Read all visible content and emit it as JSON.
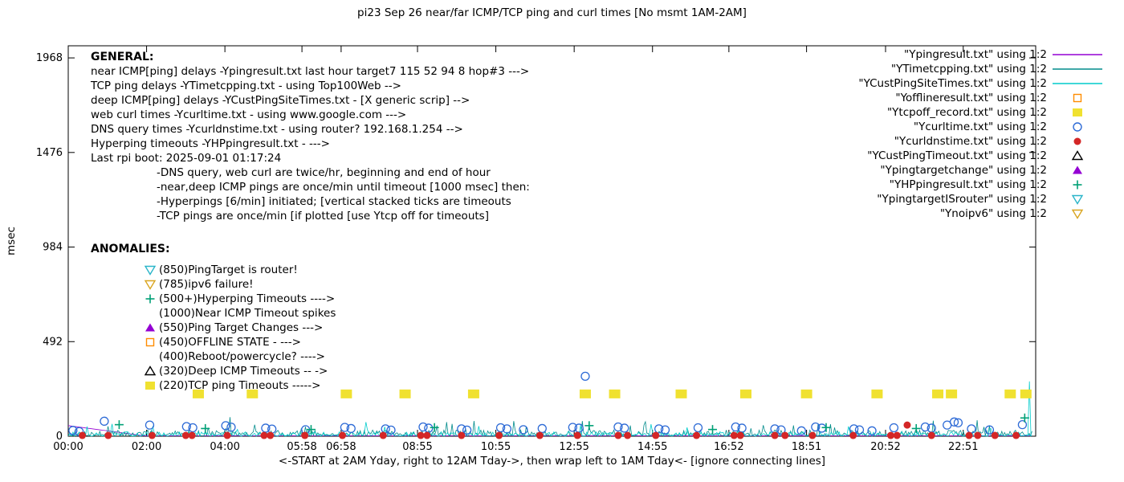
{
  "title": "pi23 Sep 26  near/far ICMP/TCP ping and curl times  [No msmt 1AM-2AM]",
  "axes": {
    "ylabel": "msec",
    "xlabel": "<-START at 2AM Yday, right to 12AM Tday->, then wrap left to 1AM Tday<- [ignore connecting lines]",
    "yticks": [
      {
        "label": "0",
        "v": 0
      },
      {
        "label": "492",
        "v": 492
      },
      {
        "label": "984",
        "v": 984
      },
      {
        "label": "1476",
        "v": 1476
      },
      {
        "label": "1968",
        "v": 1968
      }
    ],
    "xticks": [
      {
        "label": "00:00",
        "t": 0
      },
      {
        "label": "02:00",
        "t": 2
      },
      {
        "label": "04:00",
        "t": 4
      },
      {
        "label": "05:58",
        "t": 5.967
      },
      {
        "label": "06:58",
        "t": 6.967
      },
      {
        "label": "08:55",
        "t": 8.917
      },
      {
        "label": "10:55",
        "t": 10.917
      },
      {
        "label": "12:55",
        "t": 12.917
      },
      {
        "label": "14:55",
        "t": 14.917
      },
      {
        "label": "16:52",
        "t": 16.867
      },
      {
        "label": "18:51",
        "t": 18.85
      },
      {
        "label": "20:52",
        "t": 20.867
      },
      {
        "label": "22:51",
        "t": 22.85
      }
    ]
  },
  "notes": {
    "general_heading": "GENERAL:",
    "general_lines": [
      {
        "text": "near ICMP[ping] delays -Ypingresult.txt last hour target7 115 52 94 8 hop#3 --->",
        "indent": false
      },
      {
        "text": "TCP ping delays -YTimetcpping.txt - using Top100Web -->",
        "indent": false
      },
      {
        "text": "deep ICMP[ping] delays -YCustPingSiteTimes.txt - [X generic scrip] -->",
        "indent": false
      },
      {
        "text": "web curl times -Ycurltime.txt - using www.google.com --->",
        "indent": false
      },
      {
        "text": "DNS query times -Ycurldnstime.txt - using router? 192.168.1.254 -->",
        "indent": false
      },
      {
        "text": "Hyperping timeouts -YHPpingresult.txt - --->",
        "indent": false
      },
      {
        "text": "Last rpi boot: 2025-09-01 01:17:24",
        "indent": false
      },
      {
        "text": "-DNS query, web curl are twice/hr, beginning and end of hour",
        "indent": true
      },
      {
        "text": "-near,deep ICMP pings are once/min until timeout [1000 msec] then:",
        "indent": true
      },
      {
        "text": "-Hyperpings [6/min] initiated; [vertical stacked ticks are timeouts",
        "indent": true
      },
      {
        "text": "-TCP pings are once/min [if plotted [use Ytcp off for timeouts]",
        "indent": true
      }
    ],
    "anomalies_heading": "ANOMALIES:",
    "anomaly_items": [
      {
        "marker": "tri-down-open",
        "color": "#2ab5c9",
        "text": "(850)PingTarget is router!"
      },
      {
        "marker": "tri-down-open",
        "color": "#d9a520",
        "text": "(785)ipv6 failure!"
      },
      {
        "marker": "plus",
        "color": "#00a076",
        "text": "(500+)Hyperping Timeouts ---->"
      },
      {
        "marker": null,
        "color": null,
        "text": "(1000)Near ICMP Timeout spikes"
      },
      {
        "marker": "triangle-filled",
        "color": "#9400d3",
        "text": "(550)Ping Target Changes --->"
      },
      {
        "marker": "square-open",
        "color": "#ff8c00",
        "text": "(450)OFFLINE STATE - --->"
      },
      {
        "marker": null,
        "color": null,
        "text": "(400)Reboot/powercycle? ---->"
      },
      {
        "marker": "triangle-open",
        "color": "#000000",
        "text": "(320)Deep ICMP Timeouts -- ->"
      },
      {
        "marker": "square-filled",
        "color": "#f0e130",
        "text": "(220)TCP ping Timeouts ----->"
      }
    ]
  },
  "legend": [
    {
      "label": "\"Ypingresult.txt\" using 1:2",
      "marker": "line",
      "color": "#9400d3"
    },
    {
      "label": "\"YTimetcpping.txt\" using 1:2",
      "marker": "line",
      "color": "#008b8b"
    },
    {
      "label": "\"YCustPingSiteTimes.txt\" using 1:2",
      "marker": "line",
      "color": "#00cccc"
    },
    {
      "label": "\"Yofflineresult.txt\" using 1:2",
      "marker": "square-open",
      "color": "#ff8c00"
    },
    {
      "label": "\"Ytcpoff_record.txt\" using 1:2",
      "marker": "square-filled",
      "color": "#f0e130"
    },
    {
      "label": "\"Ycurltime.txt\" using 1:2",
      "marker": "circle-open",
      "color": "#2e6bd6"
    },
    {
      "label": "\"Ycurldnstime.txt\" using 1:2",
      "marker": "circle-filled",
      "color": "#d42626"
    },
    {
      "label": "\"YCustPingTimeout.txt\" using 1:2",
      "marker": "triangle-open",
      "color": "#000000"
    },
    {
      "label": "\"Ypingtargetchange\" using 1:2",
      "marker": "triangle-filled",
      "color": "#9400d3"
    },
    {
      "label": "\"YHPpingresult.txt\" using 1:2",
      "marker": "plus",
      "color": "#00a076"
    },
    {
      "label": "\"YpingtargetISrouter\" using 1:2",
      "marker": "tri-down-open",
      "color": "#2ab5c9"
    },
    {
      "label": "\"Ynoipv6\" using 1:2",
      "marker": "tri-down-open",
      "color": "#d9a520"
    }
  ],
  "chart_data": {
    "type": "line",
    "title": "pi23 Sep 26  near/far ICMP/TCP ping and curl times  [No msmt 1AM-2AM]",
    "xlabel": "<-START at 2AM Yday, right to 12AM Tday->, then wrap left to 1AM Tday<- [ignore connecting lines]",
    "ylabel": "msec",
    "xlim": [
      0,
      24.7
    ],
    "ylim": [
      0,
      2031
    ],
    "grid": false,
    "legend_position": "top-right",
    "series": [
      {
        "name": "Ypingresult.txt",
        "type": "line",
        "color": "#9400d3",
        "points": [
          [
            0,
            55
          ],
          [
            1.95,
            2
          ],
          [
            24.6,
            2
          ]
        ]
      },
      {
        "name": "YTimetcpping.txt",
        "type": "noise-line",
        "color": "#008b8b",
        "noise": {
          "seed": 7,
          "base": 2,
          "amp": 30,
          "spike_chance": 0.05,
          "spike_amp": 70,
          "step": 0.035,
          "t0": 0,
          "t1": 24.62
        }
      },
      {
        "name": "YCustPingSiteTimes.txt",
        "type": "noise-line",
        "color": "#00cccc",
        "noise": {
          "seed": 13,
          "base": 1,
          "amp": 22,
          "spike_chance": 0.04,
          "spike_amp": 55,
          "step": 0.04,
          "t0": 0,
          "t1": 24.62
        },
        "extra_segments": [
          [
            [
              24.5,
              0
            ],
            [
              24.54,
              285
            ],
            [
              24.58,
              0
            ]
          ]
        ]
      },
      {
        "name": "Ytcpoff_record.txt (TCP ping timeouts, 220 msec)",
        "type": "square-filled",
        "color": "#f0e130",
        "w": 14,
        "h": 11,
        "points": [
          [
            3.32,
            220
          ],
          [
            4.7,
            220
          ],
          [
            7.1,
            220
          ],
          [
            8.6,
            220
          ],
          [
            10.35,
            220
          ],
          [
            13.2,
            220
          ],
          [
            13.95,
            220
          ],
          [
            15.65,
            220
          ],
          [
            17.3,
            220
          ],
          [
            18.85,
            220
          ],
          [
            20.65,
            220
          ],
          [
            22.2,
            220
          ],
          [
            22.55,
            220
          ],
          [
            24.05,
            220
          ],
          [
            24.45,
            220
          ]
        ]
      },
      {
        "name": "Ycurltime.txt (web curl times)",
        "type": "circle-open",
        "color": "#2e6bd6",
        "points": [
          [
            0.12,
            30
          ],
          [
            0.28,
            24
          ],
          [
            0.92,
            78
          ],
          [
            2.08,
            58
          ],
          [
            3.02,
            50
          ],
          [
            3.18,
            44
          ],
          [
            4.02,
            55
          ],
          [
            4.16,
            47
          ],
          [
            5.04,
            42
          ],
          [
            5.2,
            37
          ],
          [
            6.06,
            34
          ],
          [
            7.06,
            46
          ],
          [
            7.22,
            40
          ],
          [
            8.1,
            38
          ],
          [
            8.24,
            32
          ],
          [
            9.06,
            48
          ],
          [
            9.2,
            42
          ],
          [
            10.04,
            38
          ],
          [
            10.18,
            32
          ],
          [
            11.04,
            44
          ],
          [
            11.2,
            38
          ],
          [
            11.62,
            34
          ],
          [
            12.1,
            40
          ],
          [
            12.88,
            46
          ],
          [
            13.04,
            42
          ],
          [
            13.2,
            312
          ],
          [
            14.04,
            48
          ],
          [
            14.2,
            42
          ],
          [
            15.08,
            38
          ],
          [
            15.24,
            33
          ],
          [
            16.08,
            44
          ],
          [
            17.04,
            48
          ],
          [
            17.2,
            42
          ],
          [
            18.04,
            38
          ],
          [
            18.2,
            33
          ],
          [
            18.72,
            28
          ],
          [
            19.08,
            48
          ],
          [
            19.24,
            42
          ],
          [
            20.06,
            38
          ],
          [
            20.2,
            33
          ],
          [
            20.52,
            28
          ],
          [
            21.08,
            44
          ],
          [
            21.88,
            48
          ],
          [
            22.04,
            42
          ],
          [
            22.44,
            58
          ],
          [
            22.62,
            74
          ],
          [
            22.72,
            70
          ],
          [
            23.06,
            38
          ],
          [
            23.52,
            33
          ],
          [
            24.36,
            60
          ]
        ]
      },
      {
        "name": "Ycurldnstime.txt (DNS query times)",
        "type": "circle-filled",
        "color": "#d42626",
        "points": [
          [
            0.36,
            4
          ],
          [
            1.02,
            4
          ],
          [
            2.14,
            4
          ],
          [
            3.0,
            4
          ],
          [
            3.16,
            4
          ],
          [
            4.06,
            4
          ],
          [
            5.0,
            4
          ],
          [
            5.16,
            4
          ],
          [
            6.04,
            4
          ],
          [
            7.0,
            4
          ],
          [
            8.04,
            4
          ],
          [
            9.0,
            4
          ],
          [
            9.16,
            4
          ],
          [
            10.04,
            4
          ],
          [
            11.0,
            4
          ],
          [
            12.04,
            4
          ],
          [
            13.0,
            4
          ],
          [
            14.04,
            4
          ],
          [
            14.28,
            4
          ],
          [
            15.0,
            4
          ],
          [
            16.04,
            4
          ],
          [
            17.0,
            4
          ],
          [
            17.16,
            4
          ],
          [
            18.04,
            4
          ],
          [
            18.3,
            4
          ],
          [
            19.0,
            4
          ],
          [
            20.04,
            4
          ],
          [
            21.0,
            4
          ],
          [
            21.16,
            4
          ],
          [
            21.42,
            58
          ],
          [
            22.04,
            4
          ],
          [
            23.0,
            4
          ],
          [
            23.22,
            4
          ],
          [
            23.66,
            4
          ],
          [
            24.2,
            4
          ]
        ]
      },
      {
        "name": "YHPpingresult.txt (Hyperping timeouts)",
        "type": "plus",
        "color": "#00a076",
        "points": [
          [
            1.3,
            60
          ],
          [
            3.5,
            40
          ],
          [
            6.2,
            35
          ],
          [
            9.35,
            45
          ],
          [
            13.3,
            55
          ],
          [
            16.45,
            35
          ],
          [
            19.35,
            45
          ],
          [
            21.65,
            40
          ],
          [
            24.42,
            95
          ]
        ]
      }
    ]
  }
}
